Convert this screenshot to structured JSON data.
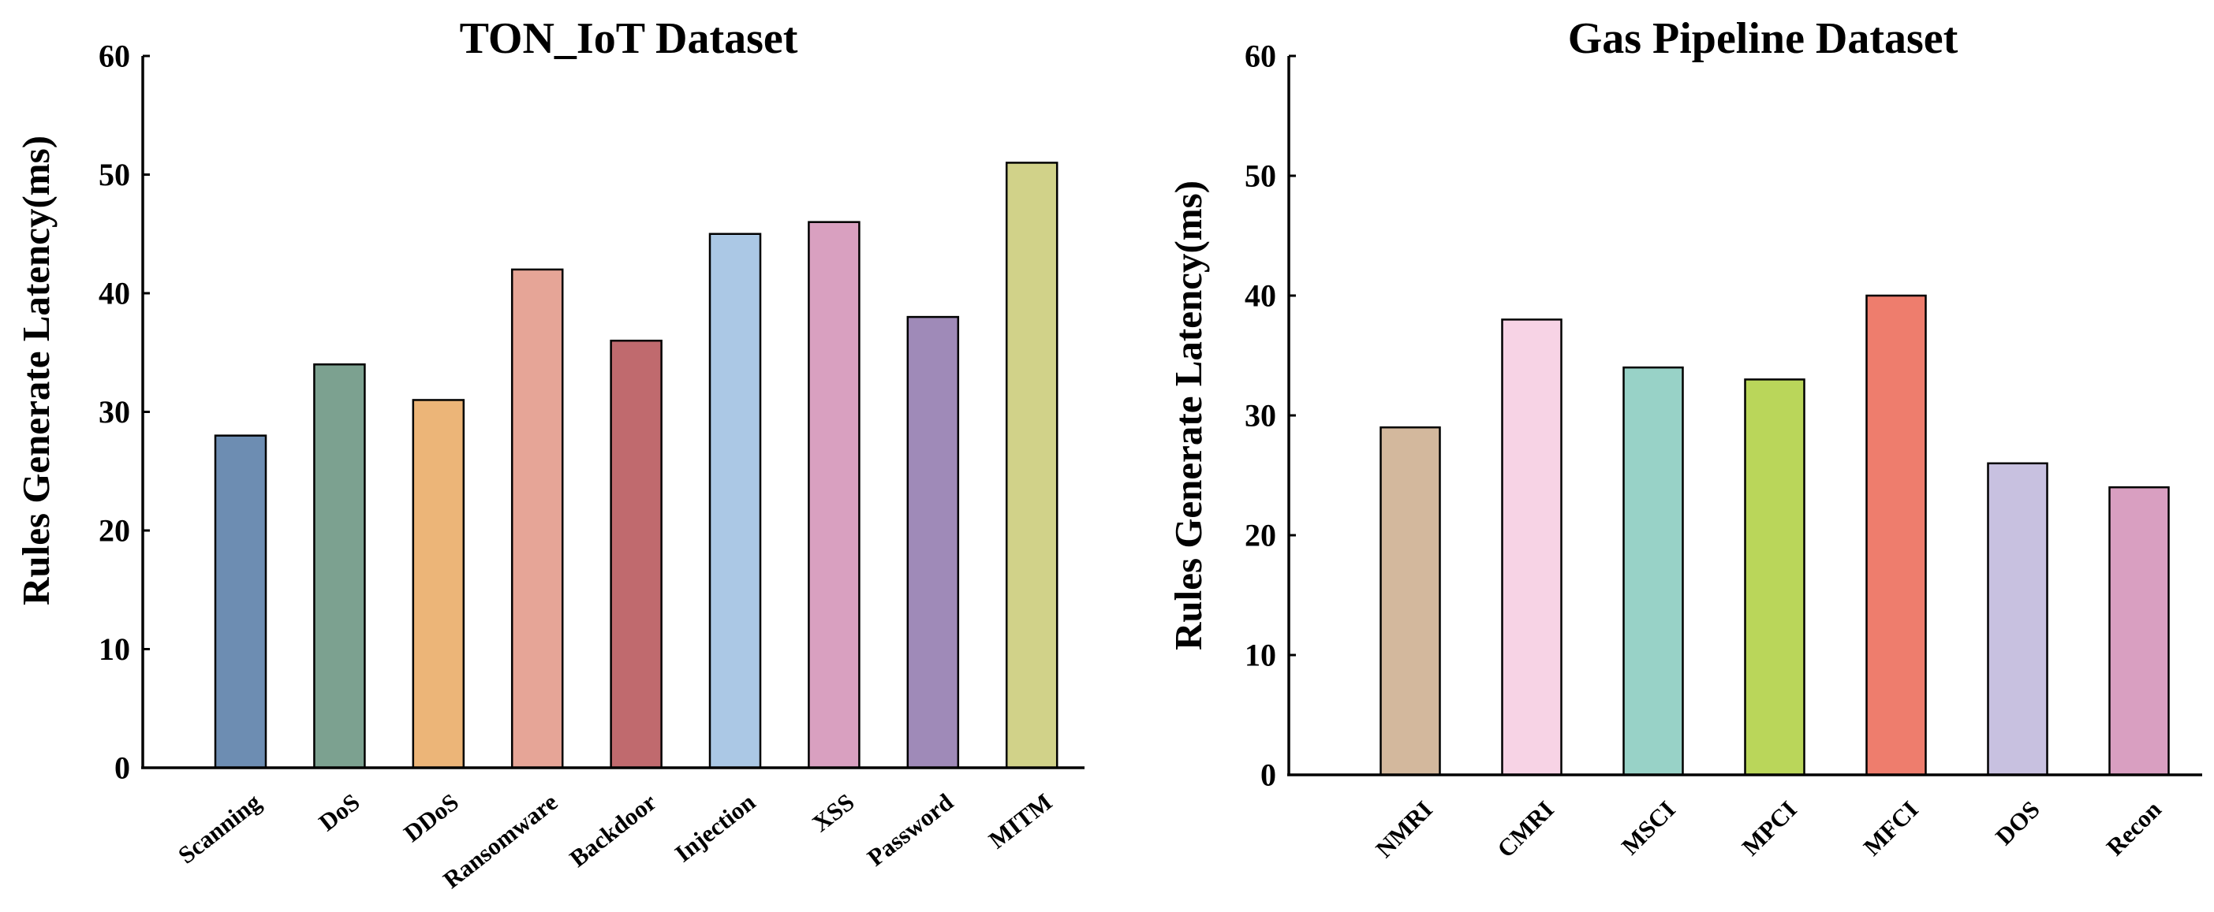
{
  "chart_data": [
    {
      "type": "bar",
      "title": "TON_IoT Dataset",
      "xlabel": "",
      "ylabel": "Rules Generate Latency(ms)",
      "ylim": [
        0,
        60
      ],
      "yticks": [
        0,
        10,
        20,
        30,
        40,
        50,
        60
      ],
      "grid": false,
      "legend": "none",
      "categories": [
        "Scanning",
        "DoS",
        "DDoS",
        "Ransomware",
        "Backdoor",
        "Injection",
        "XSS",
        "Password",
        "MITM"
      ],
      "values": [
        28,
        34,
        31,
        42,
        36,
        45,
        46,
        38,
        51
      ],
      "colors": [
        "#6d8db2",
        "#7ca190",
        "#ecb578",
        "#e6a597",
        "#c06a6e",
        "#abc8e5",
        "#d9a0c0",
        "#9f8ab8",
        "#d1d289"
      ]
    },
    {
      "type": "bar",
      "title": "Gas Pipeline Dataset",
      "xlabel": "",
      "ylabel": "Rules Generate Latency(ms)",
      "ylim": [
        0,
        60
      ],
      "yticks": [
        0,
        10,
        20,
        30,
        40,
        50,
        60
      ],
      "grid": false,
      "legend": "none",
      "categories": [
        "NMRI",
        "CMRI",
        "MSCI",
        "MPCI",
        "MFCI",
        "DOS",
        "Recon"
      ],
      "values": [
        29,
        38,
        34,
        33,
        40,
        26,
        24
      ],
      "colors": [
        "#d3b89d",
        "#f7d3e5",
        "#98d2c7",
        "#bad65a",
        "#ee7d6d",
        "#c8c1e0",
        "#d99fc1"
      ]
    }
  ]
}
